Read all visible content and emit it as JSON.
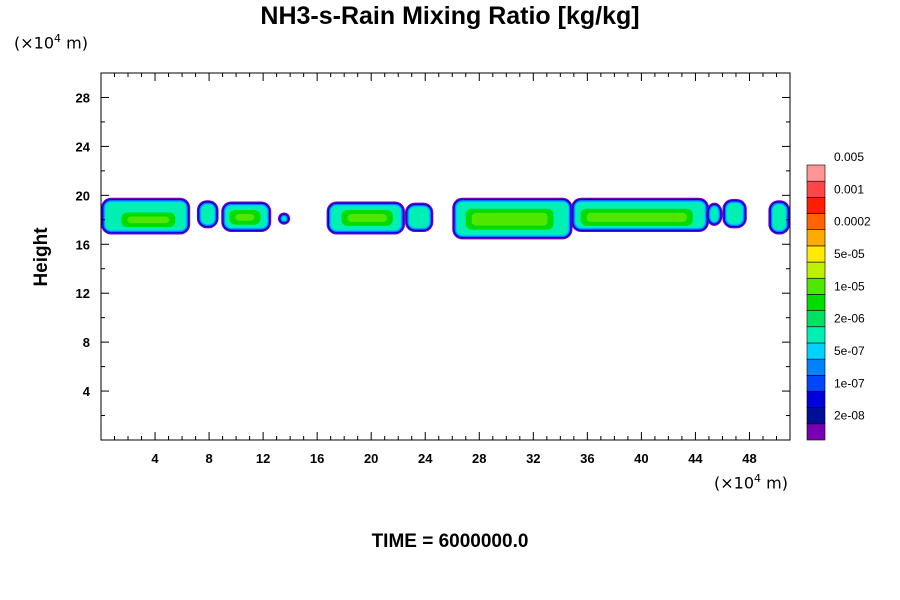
{
  "chart_data": {
    "type": "heatmap",
    "title": "NH3-s-Rain Mixing Ratio [kg/kg]",
    "ylabel": "Height",
    "xlabel": "",
    "x_unit": {
      "prefix": "(×10",
      "exp": "4",
      "suffix": " m)"
    },
    "y_unit": {
      "prefix": "(×10",
      "exp": "4",
      "suffix": " m)"
    },
    "xlim": [
      0,
      51
    ],
    "ylim": [
      0,
      30
    ],
    "x_ticks": [
      4,
      8,
      12,
      16,
      20,
      24,
      28,
      32,
      36,
      40,
      44,
      48
    ],
    "y_ticks": [
      4,
      8,
      12,
      16,
      20,
      24,
      28
    ],
    "colorbar": {
      "colors": [
        "#7a00b4",
        "#000f96",
        "#0000dc",
        "#0046ff",
        "#0082ff",
        "#00d2ff",
        "#00f0b4",
        "#00e164",
        "#00dc00",
        "#50e600",
        "#bef000",
        "#ffeb00",
        "#ffaa00",
        "#ff6400",
        "#ff1e00",
        "#ff4646",
        "#ff9696"
      ],
      "labels": [
        "2e-08",
        "1e-07",
        "5e-07",
        "2e-06",
        "1e-05",
        "5e-05",
        "0.0002",
        "0.001",
        "0.005"
      ]
    },
    "features": [
      {
        "x0": 0.0,
        "x1": 6.6,
        "y0": 16.8,
        "y1": 19.8,
        "core": [
          1.5,
          5.5,
          17.4,
          18.6
        ]
      },
      {
        "x0": 7.1,
        "x1": 8.7,
        "y0": 17.3,
        "y1": 19.6,
        "core": null
      },
      {
        "x0": 8.9,
        "x1": 12.6,
        "y0": 17.0,
        "y1": 19.5,
        "core": [
          9.5,
          11.8,
          17.6,
          18.8
        ]
      },
      {
        "x0": 13.1,
        "x1": 14.0,
        "y0": 17.6,
        "y1": 18.6,
        "core": null
      },
      {
        "x0": 16.7,
        "x1": 22.5,
        "y0": 16.8,
        "y1": 19.5,
        "core": [
          17.8,
          21.6,
          17.5,
          18.8
        ]
      },
      {
        "x0": 22.5,
        "x1": 24.6,
        "y0": 17.0,
        "y1": 19.4,
        "core": null
      },
      {
        "x0": 26.0,
        "x1": 34.9,
        "y0": 16.4,
        "y1": 19.8,
        "core": [
          27.0,
          33.5,
          17.2,
          18.9
        ]
      },
      {
        "x0": 34.8,
        "x1": 45.0,
        "y0": 17.0,
        "y1": 19.8,
        "core": [
          35.5,
          43.8,
          17.5,
          18.9
        ]
      },
      {
        "x0": 44.8,
        "x1": 46.0,
        "y0": 17.5,
        "y1": 19.4,
        "core": null
      },
      {
        "x0": 46.0,
        "x1": 47.8,
        "y0": 17.3,
        "y1": 19.7,
        "core": null
      },
      {
        "x0": 49.4,
        "x1": 51.0,
        "y0": 16.8,
        "y1": 19.6,
        "core": null
      }
    ]
  },
  "time_label": "TIME = 6000000.0"
}
